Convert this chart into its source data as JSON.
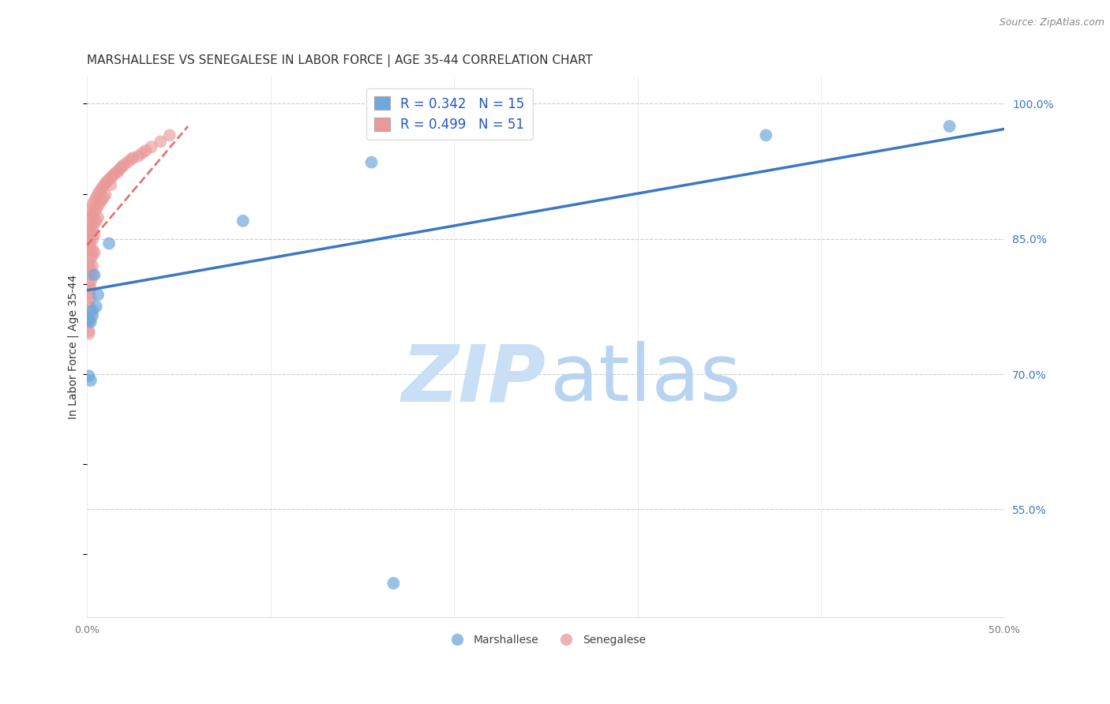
{
  "title": "MARSHALLESE VS SENEGALESE IN LABOR FORCE | AGE 35-44 CORRELATION CHART",
  "source_text": "Source: ZipAtlas.com",
  "ylabel": "In Labor Force | Age 35-44",
  "xlim": [
    0.0,
    0.5
  ],
  "ylim": [
    0.43,
    1.03
  ],
  "xticks": [
    0.0,
    0.1,
    0.2,
    0.3,
    0.4,
    0.5
  ],
  "xtick_labels": [
    "0.0%",
    "",
    "",
    "",
    "",
    "50.0%"
  ],
  "ytick_labels_right": [
    "100.0%",
    "85.0%",
    "70.0%",
    "55.0%"
  ],
  "ytick_vals_right": [
    1.0,
    0.85,
    0.7,
    0.55
  ],
  "blue_R": 0.342,
  "blue_N": 15,
  "pink_R": 0.499,
  "pink_N": 51,
  "blue_color": "#6fa8dc",
  "pink_color": "#ea9999",
  "blue_line_color": "#3b78c3",
  "pink_line_color": "#e06666",
  "watermark_zip_color": "#c9dff5",
  "watermark_atlas_color": "#b8d4f0",
  "legend_label_blue": "Marshallese",
  "legend_label_pink": "Senegalese",
  "blue_x": [
    0.001,
    0.002,
    0.003,
    0.003,
    0.004,
    0.005,
    0.006,
    0.012,
    0.085,
    0.155,
    0.37,
    0.47,
    0.001,
    0.002,
    0.167
  ],
  "blue_y": [
    0.76,
    0.758,
    0.765,
    0.77,
    0.81,
    0.775,
    0.788,
    0.845,
    0.87,
    0.935,
    0.965,
    0.975,
    0.698,
    0.693,
    0.468
  ],
  "pink_x": [
    0.001,
    0.001,
    0.001,
    0.001,
    0.002,
    0.002,
    0.002,
    0.002,
    0.003,
    0.003,
    0.003,
    0.003,
    0.003,
    0.004,
    0.004,
    0.004,
    0.004,
    0.005,
    0.005,
    0.005,
    0.006,
    0.006,
    0.006,
    0.007,
    0.007,
    0.008,
    0.008,
    0.009,
    0.009,
    0.01,
    0.01,
    0.011,
    0.012,
    0.013,
    0.013,
    0.014,
    0.015,
    0.016,
    0.017,
    0.018,
    0.019,
    0.02,
    0.022,
    0.024,
    0.025,
    0.028,
    0.03,
    0.032,
    0.035,
    0.04,
    0.045
  ],
  "pink_y": [
    0.875,
    0.862,
    0.85,
    0.838,
    0.882,
    0.87,
    0.858,
    0.845,
    0.888,
    0.875,
    0.862,
    0.85,
    0.838,
    0.892,
    0.88,
    0.868,
    0.855,
    0.896,
    0.883,
    0.87,
    0.9,
    0.887,
    0.874,
    0.903,
    0.89,
    0.906,
    0.893,
    0.909,
    0.896,
    0.912,
    0.899,
    0.914,
    0.916,
    0.918,
    0.91,
    0.92,
    0.922,
    0.924,
    0.925,
    0.928,
    0.93,
    0.932,
    0.935,
    0.938,
    0.94,
    0.942,
    0.945,
    0.948,
    0.952,
    0.958,
    0.965
  ],
  "pink_extra_x": [
    0.001,
    0.001,
    0.001,
    0.002,
    0.002,
    0.002,
    0.003,
    0.003,
    0.004,
    0.001,
    0.002,
    0.001,
    0.002,
    0.001,
    0.001,
    0.003,
    0.001,
    0.002,
    0.001,
    0.001
  ],
  "pink_extra_y": [
    0.822,
    0.812,
    0.8,
    0.828,
    0.816,
    0.803,
    0.832,
    0.82,
    0.835,
    0.79,
    0.795,
    0.78,
    0.785,
    0.77,
    0.758,
    0.81,
    0.745,
    0.773,
    0.76,
    0.748
  ],
  "blue_line_x0": 0.0,
  "blue_line_y0": 0.793,
  "blue_line_x1": 0.5,
  "blue_line_y1": 0.972,
  "pink_line_x0": 0.0,
  "pink_line_y0": 0.843,
  "pink_line_x1": 0.055,
  "pink_line_y1": 0.975,
  "grid_color": "#cccccc",
  "background_color": "#ffffff",
  "title_fontsize": 11,
  "axis_label_fontsize": 10,
  "tick_fontsize": 9,
  "legend_fontsize": 11
}
